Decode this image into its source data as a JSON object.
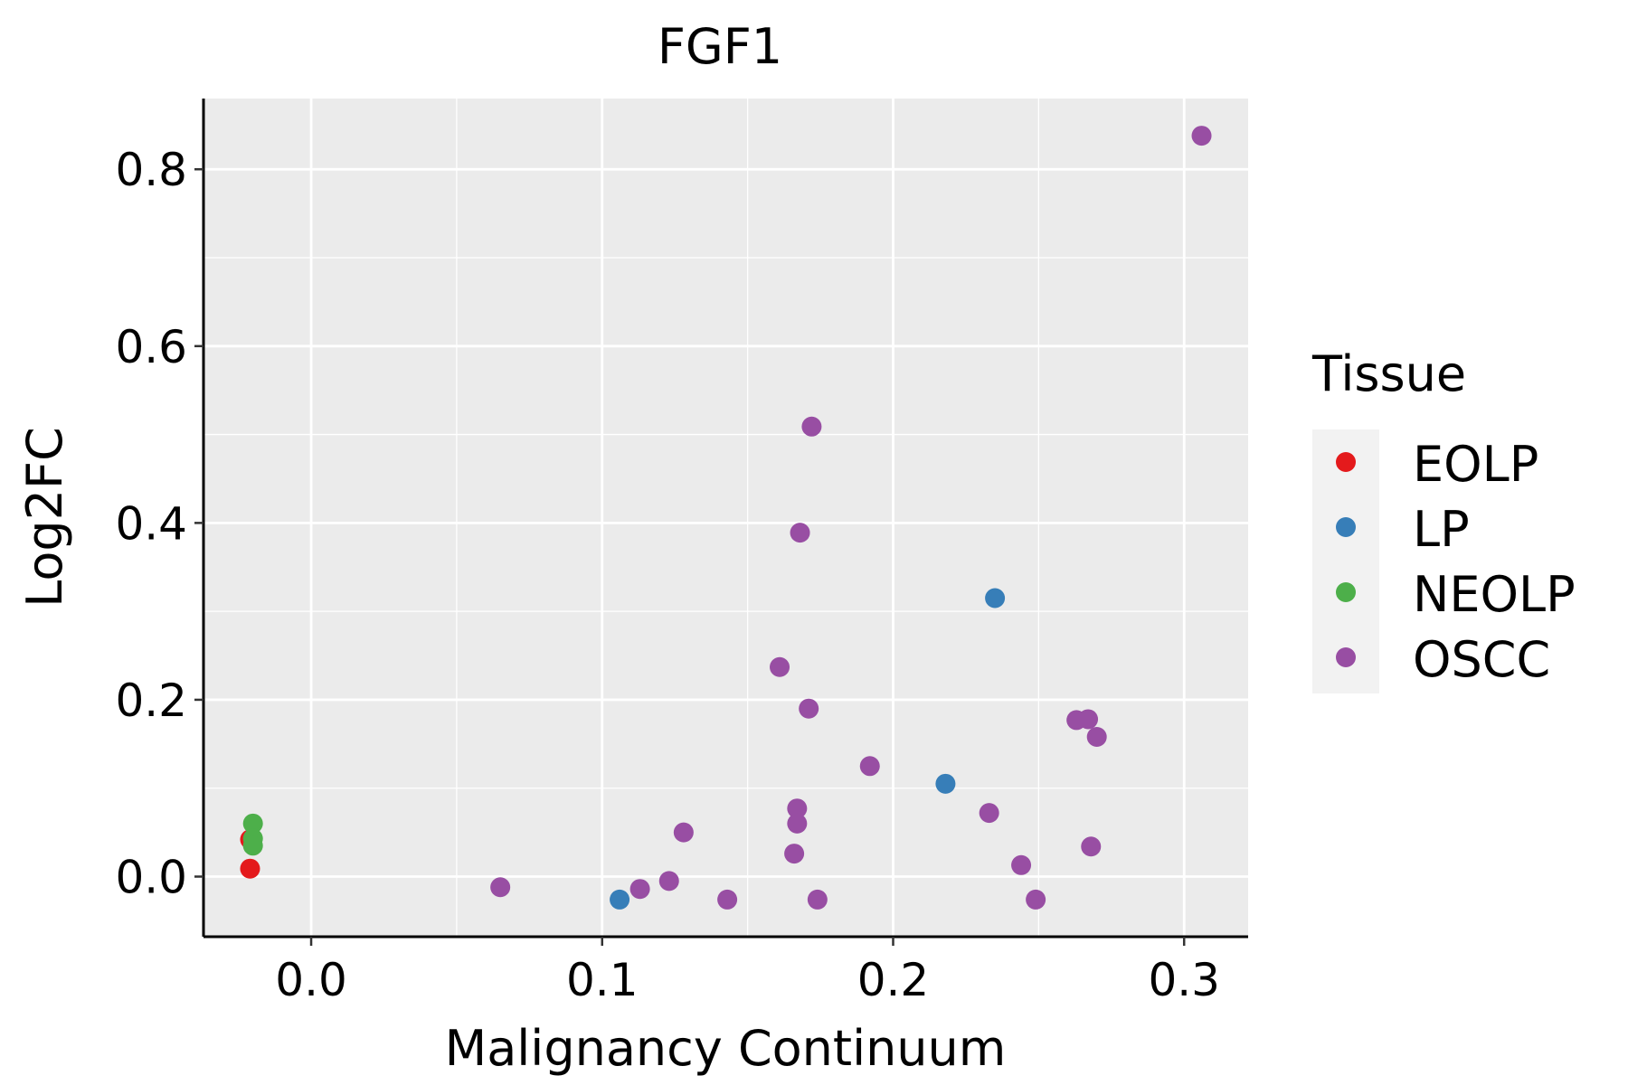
{
  "chart_data": {
    "type": "scatter",
    "title": "FGF1",
    "xlabel": "Malignancy Continuum",
    "ylabel": "Log2FC",
    "xlim": [
      -0.037,
      0.322
    ],
    "ylim": [
      -0.068,
      0.88
    ],
    "x_ticks": [
      0.0,
      0.1,
      0.2,
      0.3
    ],
    "x_tick_labels": [
      "0.0",
      "0.1",
      "0.2",
      "0.3"
    ],
    "y_ticks": [
      0.0,
      0.2,
      0.4,
      0.6,
      0.8
    ],
    "y_tick_labels": [
      "0.0",
      "0.2",
      "0.4",
      "0.6",
      "0.8"
    ],
    "grid": true,
    "legend": {
      "title": "Tissue",
      "position": "right",
      "entries": [
        "EOLP",
        "LP",
        "NEOLP",
        "OSCC"
      ]
    },
    "colors": {
      "EOLP": "#e41a1c",
      "LP": "#377eb8",
      "NEOLP": "#4daf4a",
      "OSCC": "#984ea3"
    },
    "series": [
      {
        "name": "EOLP",
        "points": [
          {
            "x": -0.021,
            "y": 0.042
          },
          {
            "x": -0.021,
            "y": 0.009
          }
        ]
      },
      {
        "name": "LP",
        "points": [
          {
            "x": 0.106,
            "y": -0.026
          },
          {
            "x": 0.218,
            "y": 0.105
          },
          {
            "x": 0.235,
            "y": 0.315
          }
        ]
      },
      {
        "name": "NEOLP",
        "points": [
          {
            "x": -0.02,
            "y": 0.06
          },
          {
            "x": -0.02,
            "y": 0.043
          },
          {
            "x": -0.02,
            "y": 0.035
          }
        ]
      },
      {
        "name": "OSCC",
        "points": [
          {
            "x": 0.065,
            "y": -0.012
          },
          {
            "x": 0.113,
            "y": -0.014
          },
          {
            "x": 0.123,
            "y": -0.005
          },
          {
            "x": 0.128,
            "y": 0.05
          },
          {
            "x": 0.143,
            "y": -0.026
          },
          {
            "x": 0.161,
            "y": 0.237
          },
          {
            "x": 0.166,
            "y": 0.026
          },
          {
            "x": 0.167,
            "y": 0.077
          },
          {
            "x": 0.167,
            "y": 0.06
          },
          {
            "x": 0.168,
            "y": 0.389
          },
          {
            "x": 0.171,
            "y": 0.19
          },
          {
            "x": 0.172,
            "y": 0.509
          },
          {
            "x": 0.174,
            "y": -0.026
          },
          {
            "x": 0.192,
            "y": 0.125
          },
          {
            "x": 0.233,
            "y": 0.072
          },
          {
            "x": 0.244,
            "y": 0.013
          },
          {
            "x": 0.249,
            "y": -0.026
          },
          {
            "x": 0.263,
            "y": 0.177
          },
          {
            "x": 0.267,
            "y": 0.178
          },
          {
            "x": 0.268,
            "y": 0.034
          },
          {
            "x": 0.27,
            "y": 0.158
          },
          {
            "x": 0.306,
            "y": 0.838
          }
        ]
      }
    ]
  }
}
